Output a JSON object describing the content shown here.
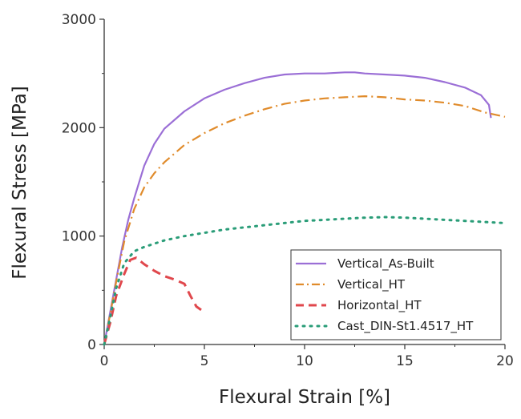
{
  "chart_data": {
    "type": "line",
    "xlabel": "Flexural Strain [%]",
    "ylabel": "Flexural Stress [MPa]",
    "xlim": [
      0,
      20
    ],
    "ylim": [
      0,
      3000
    ],
    "x_ticks": [
      "0",
      "5",
      "10",
      "15",
      "20"
    ],
    "y_ticks": [
      "0",
      "1000",
      "2000",
      "3000"
    ],
    "grid": false,
    "legend_position": "bottom-right",
    "series": [
      {
        "name": "Vertical_As-Built",
        "color": "#9b6fd6",
        "style": "solid",
        "points": [
          [
            0,
            0
          ],
          [
            0.3,
            300
          ],
          [
            0.6,
            600
          ],
          [
            0.9,
            900
          ],
          [
            1.2,
            1150
          ],
          [
            1.5,
            1350
          ],
          [
            2,
            1650
          ],
          [
            2.5,
            1850
          ],
          [
            3,
            1990
          ],
          [
            4,
            2150
          ],
          [
            5,
            2270
          ],
          [
            6,
            2350
          ],
          [
            7,
            2410
          ],
          [
            8,
            2460
          ],
          [
            9,
            2490
          ],
          [
            10,
            2500
          ],
          [
            11,
            2500
          ],
          [
            12,
            2510
          ],
          [
            12.5,
            2510
          ],
          [
            13,
            2500
          ],
          [
            14,
            2490
          ],
          [
            15,
            2480
          ],
          [
            16,
            2460
          ],
          [
            17,
            2420
          ],
          [
            18,
            2370
          ],
          [
            18.8,
            2300
          ],
          [
            19.2,
            2210
          ],
          [
            19.3,
            2090
          ]
        ]
      },
      {
        "name": "Vertical_HT",
        "color": "#e08b2b",
        "style": "dash-dot",
        "points": [
          [
            0,
            0
          ],
          [
            0.3,
            280
          ],
          [
            0.6,
            580
          ],
          [
            1,
            950
          ],
          [
            1.5,
            1250
          ],
          [
            2,
            1450
          ],
          [
            2.5,
            1580
          ],
          [
            3,
            1680
          ],
          [
            4,
            1840
          ],
          [
            5,
            1950
          ],
          [
            6,
            2040
          ],
          [
            7,
            2110
          ],
          [
            8,
            2170
          ],
          [
            9,
            2220
          ],
          [
            10,
            2250
          ],
          [
            11,
            2270
          ],
          [
            12,
            2280
          ],
          [
            13,
            2290
          ],
          [
            14,
            2280
          ],
          [
            15,
            2260
          ],
          [
            16,
            2250
          ],
          [
            17,
            2230
          ],
          [
            18,
            2200
          ],
          [
            19,
            2140
          ],
          [
            20,
            2100
          ]
        ]
      },
      {
        "name": "Horizontal_HT",
        "color": "#e0474c",
        "style": "dashed",
        "points": [
          [
            0,
            0
          ],
          [
            0.3,
            200
          ],
          [
            0.6,
            450
          ],
          [
            1,
            650
          ],
          [
            1.3,
            780
          ],
          [
            1.6,
            800
          ],
          [
            2,
            740
          ],
          [
            2.5,
            680
          ],
          [
            3,
            630
          ],
          [
            3.5,
            600
          ],
          [
            4,
            560
          ],
          [
            4.3,
            450
          ],
          [
            4.6,
            350
          ],
          [
            4.9,
            310
          ]
        ]
      },
      {
        "name": "Cast_DIN-St1.4517_HT",
        "color": "#2a9d78",
        "style": "dotted",
        "points": [
          [
            0,
            0
          ],
          [
            0.3,
            250
          ],
          [
            0.6,
            520
          ],
          [
            1,
            750
          ],
          [
            1.5,
            860
          ],
          [
            2,
            900
          ],
          [
            3,
            960
          ],
          [
            4,
            1000
          ],
          [
            5,
            1030
          ],
          [
            6,
            1060
          ],
          [
            7,
            1080
          ],
          [
            8,
            1100
          ],
          [
            9,
            1120
          ],
          [
            10,
            1140
          ],
          [
            11,
            1150
          ],
          [
            12,
            1160
          ],
          [
            13,
            1170
          ],
          [
            14,
            1175
          ],
          [
            15,
            1170
          ],
          [
            16,
            1160
          ],
          [
            17,
            1150
          ],
          [
            18,
            1140
          ],
          [
            19,
            1130
          ],
          [
            20,
            1120
          ]
        ]
      }
    ]
  }
}
